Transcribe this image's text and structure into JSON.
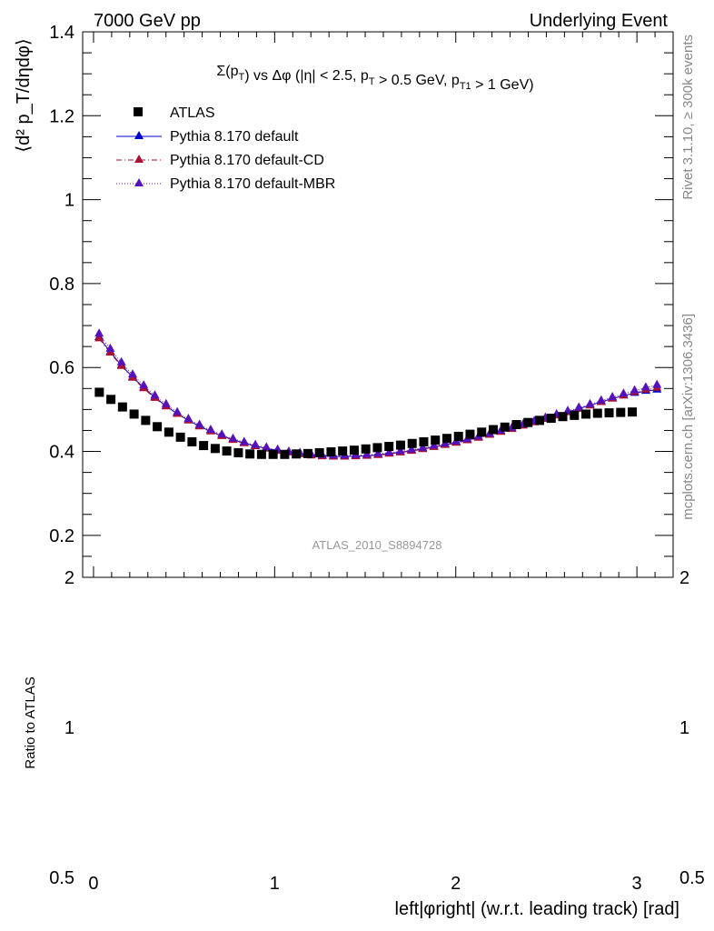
{
  "header": {
    "left": "7000 GeV pp",
    "right": "Underlying Event"
  },
  "side": {
    "rivet": "Rivet 3.1.10, ≥ 300k events",
    "mcplots": "mcplots.cern.ch [arXiv:1306.3436]"
  },
  "watermark": "ATLAS_2010_S8894728",
  "title": "Σ(p_T) vs Δφ (|η| < 2.5, p_T > 0.5 GeV, p_T1 > 1 GeV)",
  "colors": {
    "data": "#000000",
    "default": "#0000cc",
    "cd": "#aa1133",
    "mbr": "#5511bb"
  },
  "chart_data": {
    "type": "scatter",
    "title": "Σ(p_T) vs Δφ (|η| < 2.5, p_T > 0.5 GeV, p_T1 > 1 GeV)",
    "xlabel": "left|φright| (w.r.t. leading track) [rad]",
    "ylabel": "⟨d² p_T/dηdφ⟩",
    "ratio_ylabel": "Ratio to ATLAS",
    "xlim": [
      -0.06,
      3.2
    ],
    "ylim": [
      0.1,
      1.4
    ],
    "ratio_ylim": [
      0.5,
      2
    ],
    "x_ticks": [
      "0",
      "1",
      "2",
      "3"
    ],
    "y_ticks": [
      "0.2",
      "0.4",
      "0.6",
      "0.8",
      "1",
      "1.2",
      "1.4"
    ],
    "ratio_ticks": [
      "0.5",
      "1",
      "2"
    ],
    "legend_position": "top-left",
    "series": [
      {
        "name": "ATLAS",
        "values": [
          0.541,
          0.524,
          0.506,
          0.489,
          0.474,
          0.459,
          0.446,
          0.434,
          0.423,
          0.414,
          0.407,
          0.401,
          0.397,
          0.394,
          0.393,
          0.393,
          0.393,
          0.394,
          0.395,
          0.397,
          0.399,
          0.401,
          0.403,
          0.406,
          0.409,
          0.412,
          0.415,
          0.419,
          0.423,
          0.427,
          0.431,
          0.436,
          0.441,
          0.446,
          0.452,
          0.458,
          0.464,
          0.469,
          0.474,
          0.479,
          0.483,
          0.486,
          0.489,
          0.491,
          0.492,
          0.493,
          0.494
        ]
      },
      {
        "name": "Pythia 8.170 default",
        "values": [
          0.672,
          0.637,
          0.605,
          0.577,
          0.552,
          0.529,
          0.508,
          0.49,
          0.474,
          0.46,
          0.448,
          0.437,
          0.428,
          0.42,
          0.413,
          0.407,
          0.402,
          0.398,
          0.394,
          0.391,
          0.389,
          0.388,
          0.388,
          0.389,
          0.39,
          0.392,
          0.395,
          0.398,
          0.402,
          0.406,
          0.411,
          0.416,
          0.421,
          0.427,
          0.433,
          0.44,
          0.447,
          0.454,
          0.462,
          0.47,
          0.478,
          0.486,
          0.494,
          0.502,
          0.51,
          0.518,
          0.526,
          0.533,
          0.539,
          0.544,
          0.547
        ]
      },
      {
        "name": "Pythia 8.170 default-CD",
        "values": [
          0.669,
          0.635,
          0.603,
          0.575,
          0.55,
          0.527,
          0.507,
          0.489,
          0.473,
          0.459,
          0.447,
          0.436,
          0.427,
          0.419,
          0.412,
          0.406,
          0.401,
          0.397,
          0.393,
          0.39,
          0.388,
          0.387,
          0.387,
          0.388,
          0.389,
          0.391,
          0.394,
          0.397,
          0.401,
          0.405,
          0.41,
          0.415,
          0.42,
          0.426,
          0.432,
          0.439,
          0.446,
          0.453,
          0.461,
          0.469,
          0.477,
          0.485,
          0.493,
          0.501,
          0.509,
          0.517,
          0.525,
          0.533,
          0.541,
          0.547,
          0.551
        ]
      },
      {
        "name": "Pythia 8.170 default-MBR",
        "values": [
          0.68,
          0.644,
          0.612,
          0.583,
          0.557,
          0.533,
          0.512,
          0.493,
          0.477,
          0.463,
          0.451,
          0.44,
          0.43,
          0.422,
          0.415,
          0.409,
          0.404,
          0.399,
          0.396,
          0.393,
          0.391,
          0.39,
          0.39,
          0.391,
          0.392,
          0.394,
          0.397,
          0.4,
          0.404,
          0.408,
          0.413,
          0.418,
          0.423,
          0.429,
          0.435,
          0.442,
          0.449,
          0.456,
          0.464,
          0.472,
          0.48,
          0.488,
          0.496,
          0.504,
          0.512,
          0.521,
          0.529,
          0.537,
          0.545,
          0.552,
          0.558
        ]
      }
    ]
  }
}
